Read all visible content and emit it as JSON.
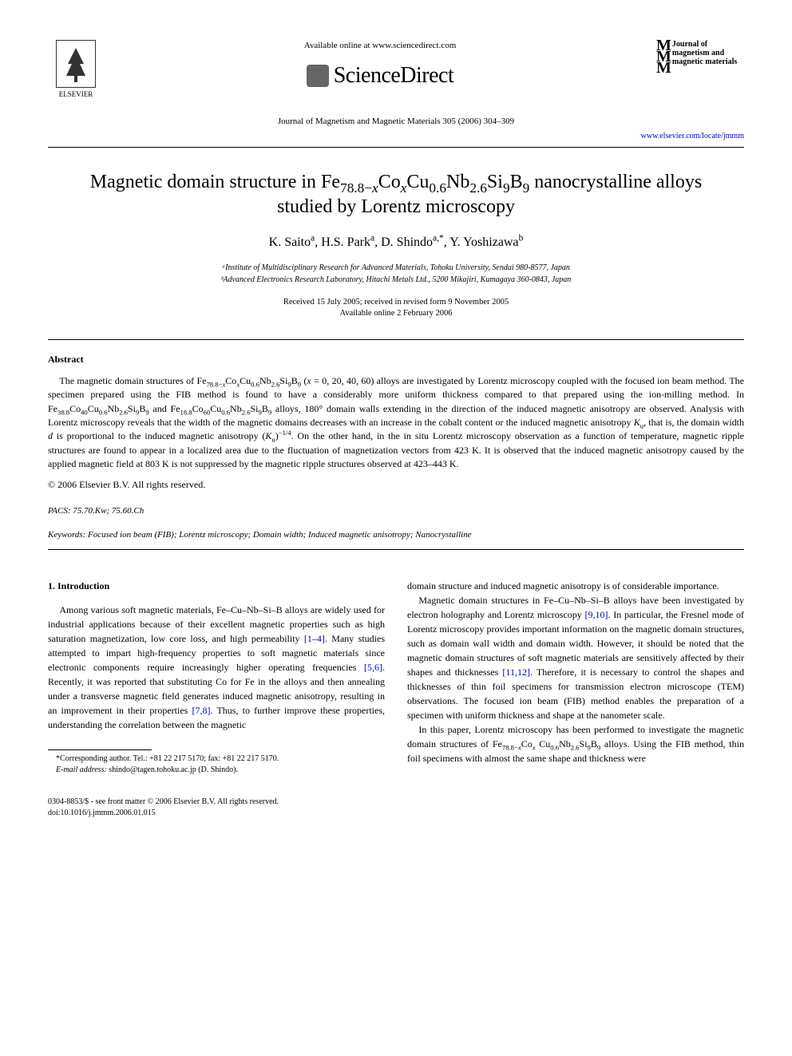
{
  "header": {
    "publisher_name": "ELSEVIER",
    "available_online": "Available online at www.sciencedirect.com",
    "platform_name": "ScienceDirect",
    "journal_reference": "Journal of Magnetism and Magnetic Materials 305 (2006) 304–309",
    "journal_url": "www.elsevier.com/locate/jmmm",
    "journal_logo_text": "Journal of magnetism and magnetic materials"
  },
  "article": {
    "title_html": "Magnetic domain structure in Fe<sub>78.8−<i>x</i></sub>Co<sub><i>x</i></sub>Cu<sub>0.6</sub>Nb<sub>2.6</sub>Si<sub>9</sub>B<sub>9</sub> nanocrystalline alloys studied by Lorentz microscopy",
    "authors_html": "K. Saito<sup>a</sup>, H.S. Park<sup>a</sup>, D. Shindo<sup>a,*</sup>, Y. Yoshizawa<sup>b</sup>",
    "affiliations": [
      "ᵃInstitute of Multidisciplinary Research for Advanced Materials, Tohoku University, Sendai 980-8577, Japan",
      "ᵇAdvanced Electronics Research Laboratory, Hitachi Metals Ltd., 5200 Mikajiri, Kumagaya 360-0843, Japan"
    ],
    "dates": {
      "received": "Received 15 July 2005; received in revised form 9 November 2005",
      "available": "Available online 2 February 2006"
    }
  },
  "abstract": {
    "heading": "Abstract",
    "text_html": "The magnetic domain structures of Fe<sub>78.8−<i>x</i></sub>Co<sub><i>x</i></sub>Cu<sub>0.6</sub>Nb<sub>2.6</sub>Si<sub>9</sub>B<sub>9</sub> (<i>x</i> = 0, 20, 40, 60) alloys are investigated by Lorentz microscopy coupled with the focused ion beam method. The specimen prepared using the FIB method is found to have a considerably more uniform thickness compared to that prepared using the ion-milling method. In Fe<sub>38.8</sub>Co<sub>40</sub>Cu<sub>0.6</sub>Nb<sub>2.6</sub>Si<sub>9</sub>B<sub>9</sub> and Fe<sub>18.8</sub>Co<sub>60</sub>Cu<sub>0.6</sub>Nb<sub>2.6</sub>Si<sub>9</sub>B<sub>9</sub> alloys, 180° domain walls extending in the direction of the induced magnetic anisotropy are observed. Analysis with Lorentz microscopy reveals that the width of the magnetic domains decreases with an increase in the cobalt content or the induced magnetic anisotropy <i>K</i><sub>u</sub>, that is, the domain width <i>d</i> is proportional to the induced magnetic anisotropy (<i>K</i><sub>u</sub>)<sup>−1/4</sup>. On the other hand, in the in situ Lorentz microscopy observation as a function of temperature, magnetic ripple structures are found to appear in a localized area due to the fluctuation of magnetization vectors from 423 K. It is observed that the induced magnetic anisotropy caused by the applied magnetic field at 803 K is not suppressed by the magnetic ripple structures observed at 423–443 K.",
    "copyright": "© 2006 Elsevier B.V. All rights reserved."
  },
  "pacs": {
    "label": "PACS:",
    "value": "75.70.Kw; 75.60.Ch"
  },
  "keywords": {
    "label": "Keywords:",
    "value": "Focused ion beam (FIB); Lorentz microscopy; Domain width; Induced magnetic anisotropy; Nanocrystalline"
  },
  "body": {
    "section_heading": "1. Introduction",
    "col1_p1_html": "Among various soft magnetic materials, Fe–Cu–Nb–Si–B alloys are widely used for industrial applications because of their excellent magnetic properties such as high saturation magnetization, low core loss, and high permeability <span class=\"ref-link\">[1–4]</span>. Many studies attempted to impart high-frequency properties to soft magnetic materials since electronic components require increasingly higher operating frequencies <span class=\"ref-link\">[5,6]</span>. Recently, it was reported that substituting Co for Fe in the alloys and then annealing under a transverse magnetic field generates induced magnetic anisotropy, resulting in an improvement in their properties <span class=\"ref-link\">[7,8]</span>. Thus, to further improve these properties, understanding the correlation between the magnetic",
    "col2_p1_html": "domain structure and induced magnetic anisotropy is of considerable importance.",
    "col2_p2_html": "Magnetic domain structures in Fe–Cu–Nb–Si–B alloys have been investigated by electron holography and Lorentz microscopy <span class=\"ref-link\">[9,10]</span>. In particular, the Fresnel mode of Lorentz microscopy provides important information on the magnetic domain structures, such as domain wall width and domain width. However, it should be noted that the magnetic domain structures of soft magnetic materials are sensitively affected by their shapes and thicknesses <span class=\"ref-link\">[11,12]</span>. Therefore, it is necessary to control the shapes and thicknesses of thin foil specimens for transmission electron microscope (TEM) observations. The focused ion beam (FIB) method enables the preparation of a specimen with uniform thickness and shape at the nanometer scale.",
    "col2_p3_html": "In this paper, Lorentz microscopy has been performed to investigate the magnetic domain structures of Fe<sub>78.8−<i>x</i></sub>Co<sub><i>x</i></sub> Cu<sub>0.6</sub>Nb<sub>2.6</sub>Si<sub>9</sub>B<sub>9</sub> alloys. Using the FIB method, thin foil specimens with almost the same shape and thickness were"
  },
  "footnote": {
    "corresponding": "*Corresponding author. Tel.: +81 22 217 5170; fax: +81 22 217 5170.",
    "email_label": "E-mail address:",
    "email": "shindo@tagen.tohoku.ac.jp (D. Shindo)."
  },
  "footer": {
    "line1": "0304-8853/$ - see front matter © 2006 Elsevier B.V. All rights reserved.",
    "line2": "doi:10.1016/j.jmmm.2006.01.015"
  }
}
